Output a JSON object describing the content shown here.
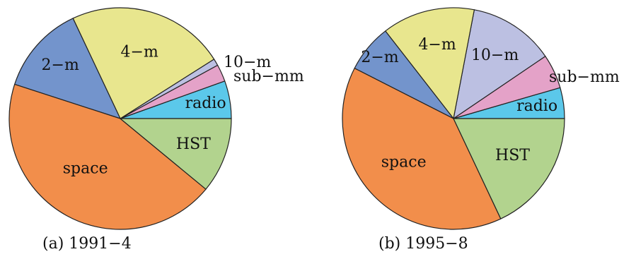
{
  "chart_data": [
    {
      "type": "pie",
      "title": "(a) 1991−4",
      "start_angle_deg": 0,
      "direction": "counterclockwise",
      "categories": [
        "radio",
        "sub−mm",
        "10−m",
        "4−m",
        "2−m",
        "space",
        "HST"
      ],
      "values": [
        5.5,
        2.5,
        1.0,
        23.0,
        13.0,
        44.0,
        11.0
      ],
      "colors": [
        "#5bc8ea",
        "#e4a2c8",
        "#bcc0e2",
        "#e8e68e",
        "#7394cc",
        "#f28e4b",
        "#b2d38e"
      ]
    },
    {
      "type": "pie",
      "title": "(b) 1995−8",
      "start_angle_deg": 0,
      "direction": "counterclockwise",
      "categories": [
        "radio",
        "sub−mm",
        "10−m",
        "4−m",
        "2−m",
        "space",
        "HST"
      ],
      "values": [
        4.5,
        5.0,
        12.5,
        13.5,
        7.0,
        39.5,
        18.0
      ],
      "colors": [
        "#5bc8ea",
        "#e4a2c8",
        "#bcc0e2",
        "#e8e68e",
        "#7394cc",
        "#f28e4b",
        "#b2d38e"
      ]
    }
  ]
}
